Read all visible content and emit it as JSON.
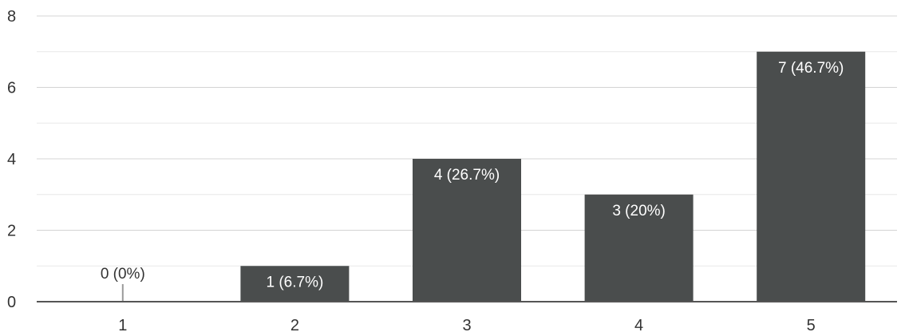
{
  "chart_data": {
    "type": "bar",
    "categories": [
      "1",
      "2",
      "3",
      "4",
      "5"
    ],
    "values": [
      0,
      1,
      4,
      3,
      7
    ],
    "data_labels": [
      "0 (0%)",
      "1 (6.7%)",
      "4 (26.7%)",
      "3 (20%)",
      "7 (46.7%)"
    ],
    "y_ticks": [
      0,
      2,
      4,
      6,
      8
    ],
    "ylim": [
      0,
      8
    ],
    "title": "",
    "xlabel": "",
    "ylabel": "",
    "grid": true,
    "legend": "none",
    "colors": {
      "bar": "#4a4d4d",
      "grid_major": "#d4d4d4",
      "grid_minor": "#e8e8e8",
      "axis": "#555555",
      "label_on_bar": "#ffffff",
      "label_outside": "#333333"
    }
  }
}
